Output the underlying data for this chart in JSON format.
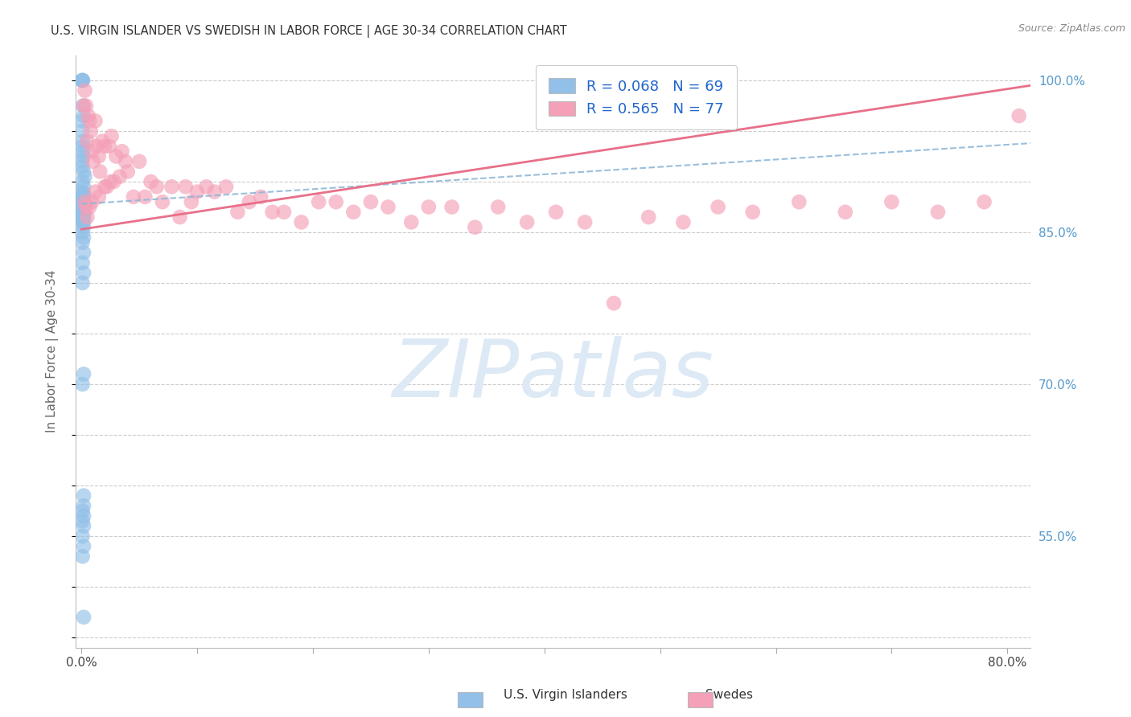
{
  "title": "U.S. VIRGIN ISLANDER VS SWEDISH IN LABOR FORCE | AGE 30-34 CORRELATION CHART",
  "source": "Source: ZipAtlas.com",
  "ylabel": "In Labor Force | Age 30-34",
  "xlim": [
    -0.005,
    0.82
  ],
  "ylim": [
    0.44,
    1.025
  ],
  "blue_R": 0.068,
  "blue_N": 69,
  "pink_R": 0.565,
  "pink_N": 77,
  "blue_color": "#92C0E8",
  "pink_color": "#F4A0B8",
  "blue_line_color": "#90B8D8",
  "pink_line_color": "#E8708A",
  "background_color": "#FFFFFF",
  "grid_color": "#CCCCCC",
  "title_color": "#333333",
  "axis_label_color": "#666666",
  "right_tick_color": "#5599CC",
  "watermark_zip": "ZIP",
  "watermark_atlas": "atlas",
  "watermark_color": "#DDEAF5",
  "blue_scatter_x": [
    0.0005,
    0.0008,
    0.001,
    0.0012,
    0.0015,
    0.002,
    0.0005,
    0.0008,
    0.001,
    0.0012,
    0.0015,
    0.002,
    0.0005,
    0.001,
    0.002,
    0.003,
    0.001,
    0.002,
    0.001,
    0.002,
    0.001,
    0.002,
    0.001,
    0.0015,
    0.001,
    0.002,
    0.001,
    0.002,
    0.001,
    0.002,
    0.001,
    0.002,
    0.001,
    0.002,
    0.001,
    0.002,
    0.001,
    0.002,
    0.001,
    0.002,
    0.001,
    0.002,
    0.001,
    0.002,
    0.001,
    0.002,
    0.001,
    0.002,
    0.001,
    0.002,
    0.001,
    0.002,
    0.001,
    0.002,
    0.001,
    0.002,
    0.001,
    0.002,
    0.001,
    0.002,
    0.002,
    0.001,
    0.002,
    0.001,
    0.002,
    0.001,
    0.002,
    0.001,
    0.002
  ],
  "blue_scatter_y": [
    1.0,
    1.0,
    1.0,
    1.0,
    0.975,
    0.965,
    0.96,
    0.95,
    0.94,
    0.935,
    0.93,
    0.925,
    0.92,
    0.915,
    0.91,
    0.905,
    0.9,
    0.895,
    0.89,
    0.888,
    0.887,
    0.886,
    0.885,
    0.884,
    0.883,
    0.882,
    0.881,
    0.88,
    0.879,
    0.878,
    0.877,
    0.876,
    0.875,
    0.875,
    0.874,
    0.873,
    0.872,
    0.871,
    0.87,
    0.869,
    0.868,
    0.867,
    0.866,
    0.865,
    0.864,
    0.863,
    0.862,
    0.861,
    0.86,
    0.855,
    0.85,
    0.845,
    0.84,
    0.83,
    0.82,
    0.81,
    0.8,
    0.71,
    0.7,
    0.59,
    0.58,
    0.575,
    0.57,
    0.565,
    0.56,
    0.55,
    0.54,
    0.53,
    0.47
  ],
  "pink_scatter_x": [
    0.002,
    0.003,
    0.004,
    0.005,
    0.006,
    0.007,
    0.008,
    0.009,
    0.01,
    0.012,
    0.013,
    0.015,
    0.016,
    0.018,
    0.02,
    0.022,
    0.024,
    0.026,
    0.028,
    0.03,
    0.033,
    0.035,
    0.038,
    0.04,
    0.045,
    0.05,
    0.055,
    0.06,
    0.065,
    0.07,
    0.078,
    0.085,
    0.09,
    0.095,
    0.1,
    0.108,
    0.115,
    0.125,
    0.135,
    0.145,
    0.155,
    0.165,
    0.175,
    0.19,
    0.205,
    0.22,
    0.235,
    0.25,
    0.265,
    0.285,
    0.3,
    0.32,
    0.34,
    0.36,
    0.385,
    0.41,
    0.435,
    0.46,
    0.49,
    0.52,
    0.55,
    0.58,
    0.62,
    0.66,
    0.7,
    0.74,
    0.78,
    0.81,
    0.003,
    0.004,
    0.005,
    0.007,
    0.009,
    0.012,
    0.015,
    0.02,
    0.025
  ],
  "pink_scatter_y": [
    0.975,
    0.99,
    0.975,
    0.94,
    0.965,
    0.96,
    0.95,
    0.93,
    0.92,
    0.96,
    0.935,
    0.925,
    0.91,
    0.94,
    0.935,
    0.895,
    0.935,
    0.945,
    0.9,
    0.925,
    0.905,
    0.93,
    0.92,
    0.91,
    0.885,
    0.92,
    0.885,
    0.9,
    0.895,
    0.88,
    0.895,
    0.865,
    0.895,
    0.88,
    0.89,
    0.895,
    0.89,
    0.895,
    0.87,
    0.88,
    0.885,
    0.87,
    0.87,
    0.86,
    0.88,
    0.88,
    0.87,
    0.88,
    0.875,
    0.86,
    0.875,
    0.875,
    0.855,
    0.875,
    0.86,
    0.87,
    0.86,
    0.78,
    0.865,
    0.86,
    0.875,
    0.87,
    0.88,
    0.87,
    0.88,
    0.87,
    0.88,
    0.965,
    0.88,
    0.875,
    0.865,
    0.875,
    0.88,
    0.89,
    0.885,
    0.895,
    0.9
  ],
  "blue_trend_x": [
    0.0,
    0.82
  ],
  "blue_trend_y": [
    0.878,
    0.938
  ],
  "pink_trend_x": [
    0.0,
    0.82
  ],
  "pink_trend_y": [
    0.853,
    0.995
  ]
}
